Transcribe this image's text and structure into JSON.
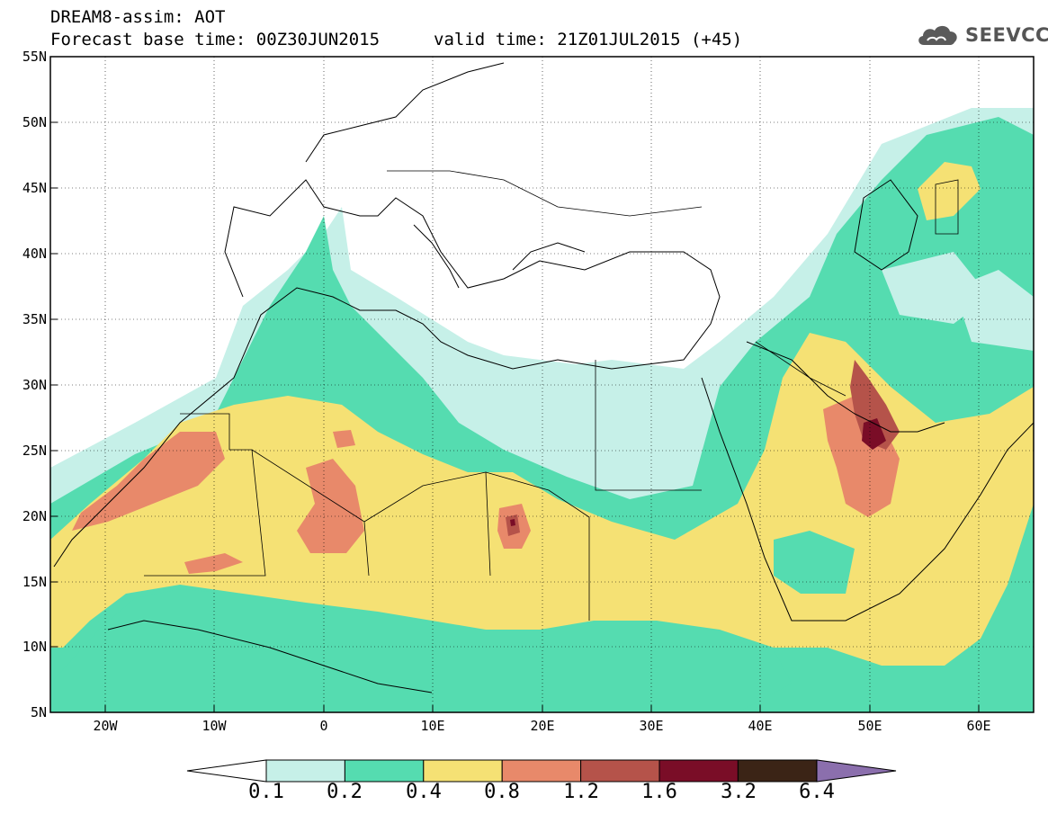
{
  "header": {
    "line1": "DREAM8-assim: AOT",
    "line2": "Forecast base time: 00Z30JUN2015",
    "valid": "valid time: 21Z01JUL2015 (+45)"
  },
  "logo": {
    "text": "SEEVCCC",
    "icon": "cloud-icon",
    "color": "#555555"
  },
  "map": {
    "lon_range": [
      -25,
      65
    ],
    "lat_range": [
      5,
      55
    ],
    "lat_ticks": [
      "55N",
      "50N",
      "45N",
      "40N",
      "35N",
      "30N",
      "25N",
      "20N",
      "15N",
      "10N",
      "5N"
    ],
    "lon_ticks": [
      "20W",
      "10W",
      "0",
      "10E",
      "20E",
      "30E",
      "40E",
      "50E",
      "60E"
    ],
    "field": "AOT"
  },
  "colorbar": {
    "labels": [
      "0.1",
      "0.2",
      "0.4",
      "0.8",
      "1.2",
      "1.6",
      "3.2",
      "6.4"
    ],
    "colors": [
      "#c6f0e8",
      "#55dcb0",
      "#f5e174",
      "#e8896a",
      "#b5534a",
      "#7a0d27",
      "#3b2416"
    ],
    "under_color": "#ffffff",
    "over_color": "#8b6fad"
  }
}
